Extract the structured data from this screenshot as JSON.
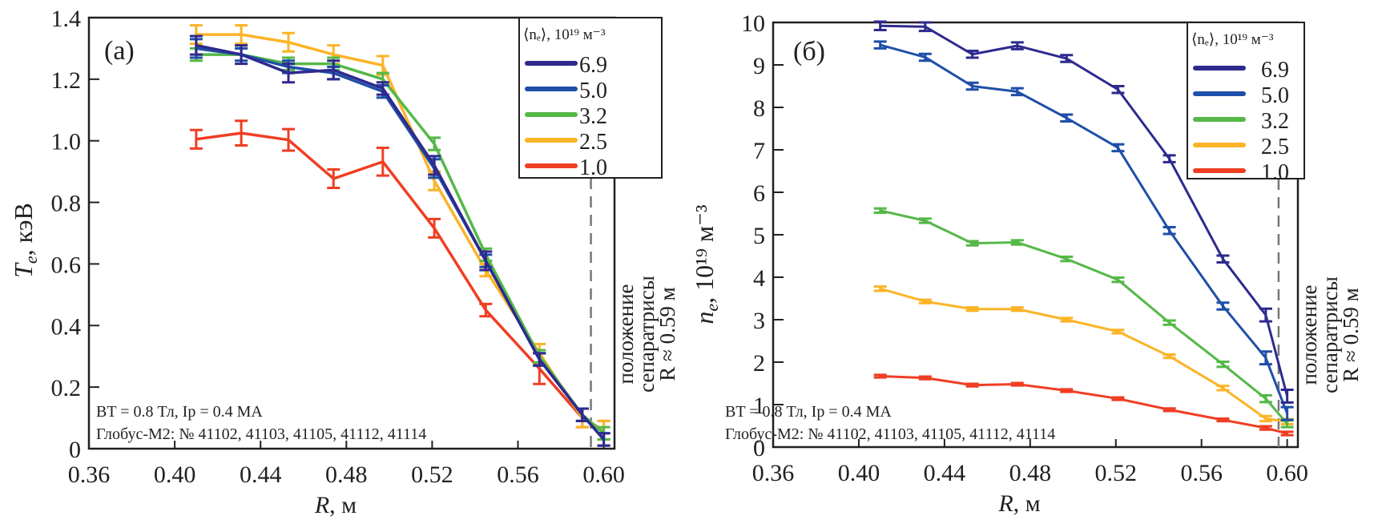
{
  "chart_data": [
    {
      "type": "line",
      "panel_label": "(a)",
      "title": "",
      "xlabel": "R, м",
      "xlabel_var": "R",
      "xlabel_unit": ", м",
      "ylabel": "Te, кэВ",
      "ylabel_var": "T",
      "ylabel_sub": "e",
      "ylabel_unit": ", кэВ",
      "xlim": [
        0.36,
        0.605
      ],
      "ylim": [
        0,
        1.4
      ],
      "xticks": [
        0.36,
        0.4,
        0.44,
        0.48,
        0.52,
        0.56,
        0.6
      ],
      "xtick_labels": [
        "0.36",
        "0.40",
        "0.44",
        "0.48",
        "0.52",
        "0.56",
        "0.60"
      ],
      "yticks": [
        0,
        0.2,
        0.4,
        0.6,
        0.8,
        1.0,
        1.2,
        1.4
      ],
      "ytick_labels": [
        "0",
        "0.2",
        "0.4",
        "0.6",
        "0.8",
        "1.0",
        "1.2",
        "1.4"
      ],
      "grid": false,
      "legend_position": "top-right",
      "legend_title": "⟨nₑ⟩, 10¹⁹ м⁻³",
      "separatrix_R": 0.594,
      "separatrix_label": [
        "положение",
        "сепаратрисы",
        "R ≈ 0.59 м"
      ],
      "annotation_lines": [
        "BT = 0.8 Тл, Iр = 0.4 МА",
        "Глобус-М2: № 41102, 41103, 41105, 41112, 41114"
      ],
      "x": [
        0.41,
        0.431,
        0.453,
        0.474,
        0.497,
        0.521,
        0.545,
        0.57,
        0.59,
        0.6
      ],
      "series": [
        {
          "name": "6.9",
          "color": "#2e2a8e",
          "values": [
            1.31,
            1.28,
            1.22,
            1.23,
            1.17,
            0.92,
            0.61,
            0.29,
            0.11,
            0.03
          ],
          "errors": [
            0.03,
            0.03,
            0.03,
            0.03,
            0.02,
            0.03,
            0.03,
            0.02,
            0.02,
            0.02
          ]
        },
        {
          "name": "5.0",
          "color": "#1f4fa8",
          "values": [
            1.3,
            1.28,
            1.24,
            1.22,
            1.16,
            0.91,
            0.61,
            0.29,
            0.11,
            0.03
          ],
          "errors": [
            0.03,
            0.02,
            0.02,
            0.02,
            0.02,
            0.03,
            0.02,
            0.02,
            0.02,
            0.02
          ]
        },
        {
          "name": "3.2",
          "color": "#55b848",
          "values": [
            1.28,
            1.28,
            1.25,
            1.25,
            1.2,
            0.99,
            0.63,
            0.3,
            0.11,
            0.05
          ],
          "errors": [
            0.02,
            0.02,
            0.02,
            0.02,
            0.02,
            0.02,
            0.02,
            0.02,
            0.02,
            0.02
          ]
        },
        {
          "name": "2.5",
          "color": "#fbb427",
          "values": [
            1.345,
            1.345,
            1.32,
            1.28,
            1.245,
            0.87,
            0.58,
            0.31,
            0.1,
            0.06
          ],
          "errors": [
            0.03,
            0.03,
            0.03,
            0.03,
            0.03,
            0.03,
            0.02,
            0.03,
            0.03,
            0.03
          ]
        },
        {
          "name": "1.0",
          "color": "#ef3e23",
          "values": [
            1.005,
            1.025,
            1.003,
            0.877,
            0.932,
            0.716,
            0.45,
            0.26,
            0.1,
            0.06
          ],
          "errors": [
            0.03,
            0.04,
            0.035,
            0.03,
            0.045,
            0.03,
            0.02,
            0.05,
            0.03,
            0.03
          ]
        }
      ]
    },
    {
      "type": "line",
      "panel_label": "(б)",
      "title": "",
      "xlabel": "R, м",
      "xlabel_var": "R",
      "xlabel_unit": ", м",
      "ylabel": "ne, 10¹⁹ м⁻³",
      "ylabel_var": "n",
      "ylabel_sub": "e",
      "ylabel_unit": ", 10¹⁹ м⁻³",
      "xlim": [
        0.36,
        0.605
      ],
      "ylim": [
        0,
        10
      ],
      "xticks": [
        0.36,
        0.4,
        0.44,
        0.48,
        0.52,
        0.56,
        0.6
      ],
      "xtick_labels": [
        "0.36",
        "0.40",
        "0.44",
        "0.48",
        "0.52",
        "0.56",
        "0.60"
      ],
      "yticks": [
        0,
        1,
        2,
        3,
        4,
        5,
        6,
        7,
        8,
        9,
        10
      ],
      "ytick_labels": [
        "0",
        "1",
        "2",
        "3",
        "4",
        "5",
        "6",
        "7",
        "8",
        "9",
        "10"
      ],
      "grid": false,
      "legend_position": "top-right",
      "legend_title": "⟨nₑ⟩, 10¹⁹ м⁻³",
      "separatrix_R": 0.596,
      "separatrix_label": [
        "положение",
        "сепаратрисы",
        "R ≈ 0.59 м"
      ],
      "annotation_lines": [
        "BT = 0.8 Тл, Iр = 0.4 МА",
        "Глобус-М2: № 41102, 41103, 41105, 41112, 41114"
      ],
      "x": [
        0.41,
        0.431,
        0.453,
        0.474,
        0.497,
        0.521,
        0.545,
        0.57,
        0.59,
        0.6
      ],
      "series": [
        {
          "name": "6.9",
          "color": "#2e2a8e",
          "values": [
            9.92,
            9.9,
            9.25,
            9.45,
            9.15,
            8.42,
            6.79,
            4.43,
            3.11,
            1.2
          ],
          "errors": [
            0.1,
            0.1,
            0.08,
            0.08,
            0.08,
            0.08,
            0.08,
            0.08,
            0.15,
            0.15
          ]
        },
        {
          "name": "5.0",
          "color": "#1f4fa8",
          "values": [
            9.47,
            9.18,
            8.5,
            8.37,
            7.75,
            7.05,
            5.1,
            3.32,
            2.1,
            0.79
          ],
          "errors": [
            0.08,
            0.08,
            0.08,
            0.08,
            0.08,
            0.08,
            0.08,
            0.08,
            0.15,
            0.15
          ]
        },
        {
          "name": "3.2",
          "color": "#55b848",
          "values": [
            5.57,
            5.33,
            4.8,
            4.82,
            4.43,
            3.94,
            2.93,
            1.95,
            1.14,
            0.55
          ],
          "errors": [
            0.05,
            0.05,
            0.05,
            0.05,
            0.05,
            0.05,
            0.05,
            0.06,
            0.08,
            0.08
          ]
        },
        {
          "name": "2.5",
          "color": "#fbb427",
          "values": [
            3.73,
            3.43,
            3.25,
            3.25,
            3.0,
            2.72,
            2.14,
            1.39,
            0.67,
            0.6
          ],
          "errors": [
            0.05,
            0.04,
            0.04,
            0.04,
            0.04,
            0.04,
            0.04,
            0.05,
            0.06,
            0.06
          ]
        },
        {
          "name": "1.0",
          "color": "#ef3e23",
          "values": [
            1.67,
            1.63,
            1.46,
            1.48,
            1.33,
            1.14,
            0.88,
            0.64,
            0.45,
            0.32
          ],
          "errors": [
            0.03,
            0.03,
            0.03,
            0.03,
            0.03,
            0.03,
            0.03,
            0.03,
            0.04,
            0.04
          ]
        }
      ]
    }
  ]
}
